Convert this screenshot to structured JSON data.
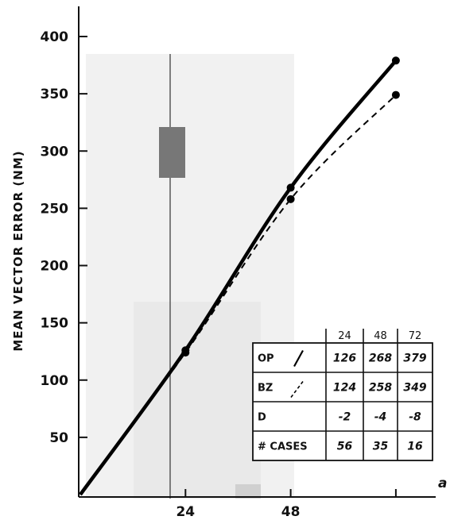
{
  "chart_data": {
    "type": "line",
    "title": "",
    "xlabel": "",
    "ylabel": "MEAN VECTOR ERROR (NM)",
    "x_axis_end_label": "a",
    "xlim": [
      0,
      80
    ],
    "ylim": [
      0,
      420
    ],
    "xticks": [
      24,
      48
    ],
    "yticks": [
      50,
      100,
      150,
      200,
      250,
      300,
      350,
      400
    ],
    "grid": false,
    "series": [
      {
        "key": "OP",
        "style": "solid",
        "x": [
          0,
          24,
          48,
          72
        ],
        "y": [
          0,
          126,
          268,
          379
        ]
      },
      {
        "key": "BZ",
        "style": "dashed",
        "x": [
          0,
          24,
          48,
          72
        ],
        "y": [
          0,
          124,
          258,
          349
        ]
      }
    ],
    "table": {
      "columns": [
        "24",
        "48",
        "72"
      ],
      "rows": [
        {
          "label": "OP",
          "legend_style": "solid",
          "values": [
            "126",
            "268",
            "379"
          ]
        },
        {
          "label": "BZ",
          "legend_style": "dashed",
          "values": [
            "124",
            "258",
            "349"
          ]
        },
        {
          "label": "D",
          "legend_style": "none",
          "values": [
            "-2",
            "-4",
            "-8"
          ]
        },
        {
          "label": "# CASES",
          "legend_style": "none",
          "values": [
            "56",
            "35",
            "16"
          ]
        }
      ]
    }
  }
}
